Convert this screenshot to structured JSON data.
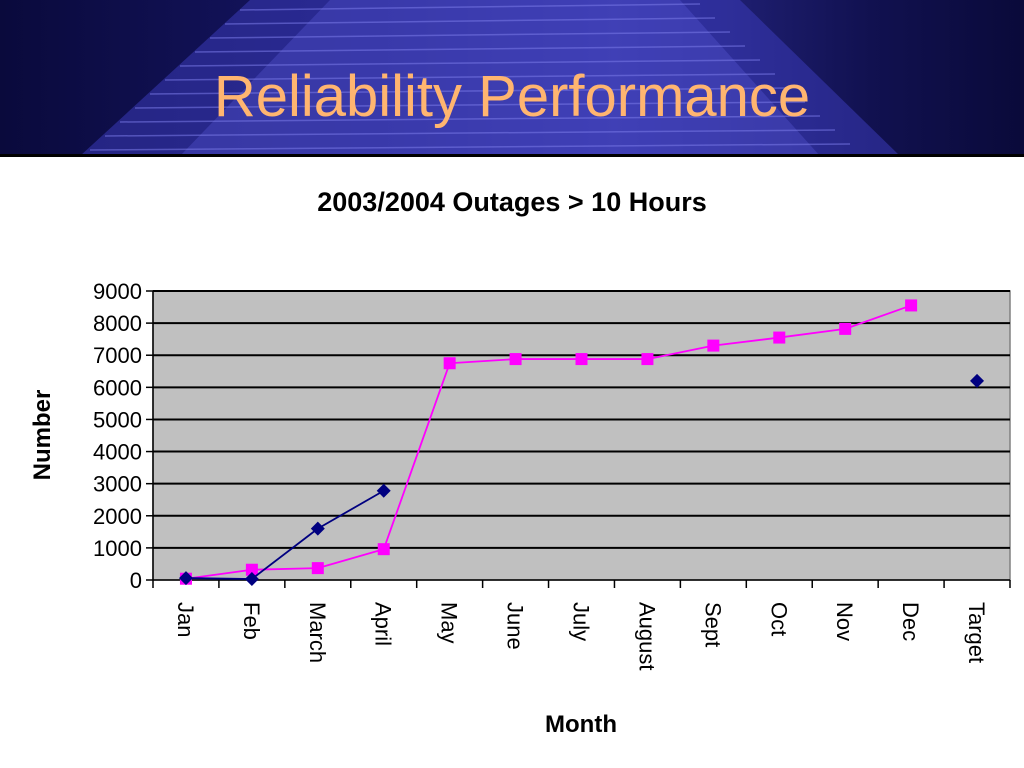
{
  "slide_title": "Reliability Performance",
  "colors": {
    "banner": "#14145a",
    "title_text": "#ffb570",
    "plot_background": "#c0c0c0",
    "series_2004": "#ff00ff",
    "series_2003": "#000080"
  },
  "chart_data": {
    "type": "line",
    "title": "2003/2004 Outages > 10 Hours",
    "xlabel": "Month",
    "ylabel": "Number",
    "categories": [
      "Jan",
      "Feb",
      "March",
      "April",
      "May",
      "June",
      "July",
      "August",
      "Sept",
      "Oct",
      "Nov",
      "Dec",
      "Target"
    ],
    "ylim": [
      0,
      9000
    ],
    "yticks": [
      "0",
      "1000",
      "2000",
      "3000",
      "4000",
      "5000",
      "6000",
      "7000",
      "8000",
      "9000"
    ],
    "grid": true,
    "series": [
      {
        "color": "#ff00ff",
        "marker": "square",
        "values": [
          40,
          320,
          370,
          960,
          6750,
          6880,
          6880,
          6880,
          7300,
          7550,
          7820,
          8550,
          null
        ]
      },
      {
        "color": "#000080",
        "marker": "diamond",
        "values": [
          60,
          30,
          1600,
          2780,
          null,
          null,
          null,
          null,
          null,
          null,
          null,
          null,
          6200
        ]
      }
    ]
  }
}
